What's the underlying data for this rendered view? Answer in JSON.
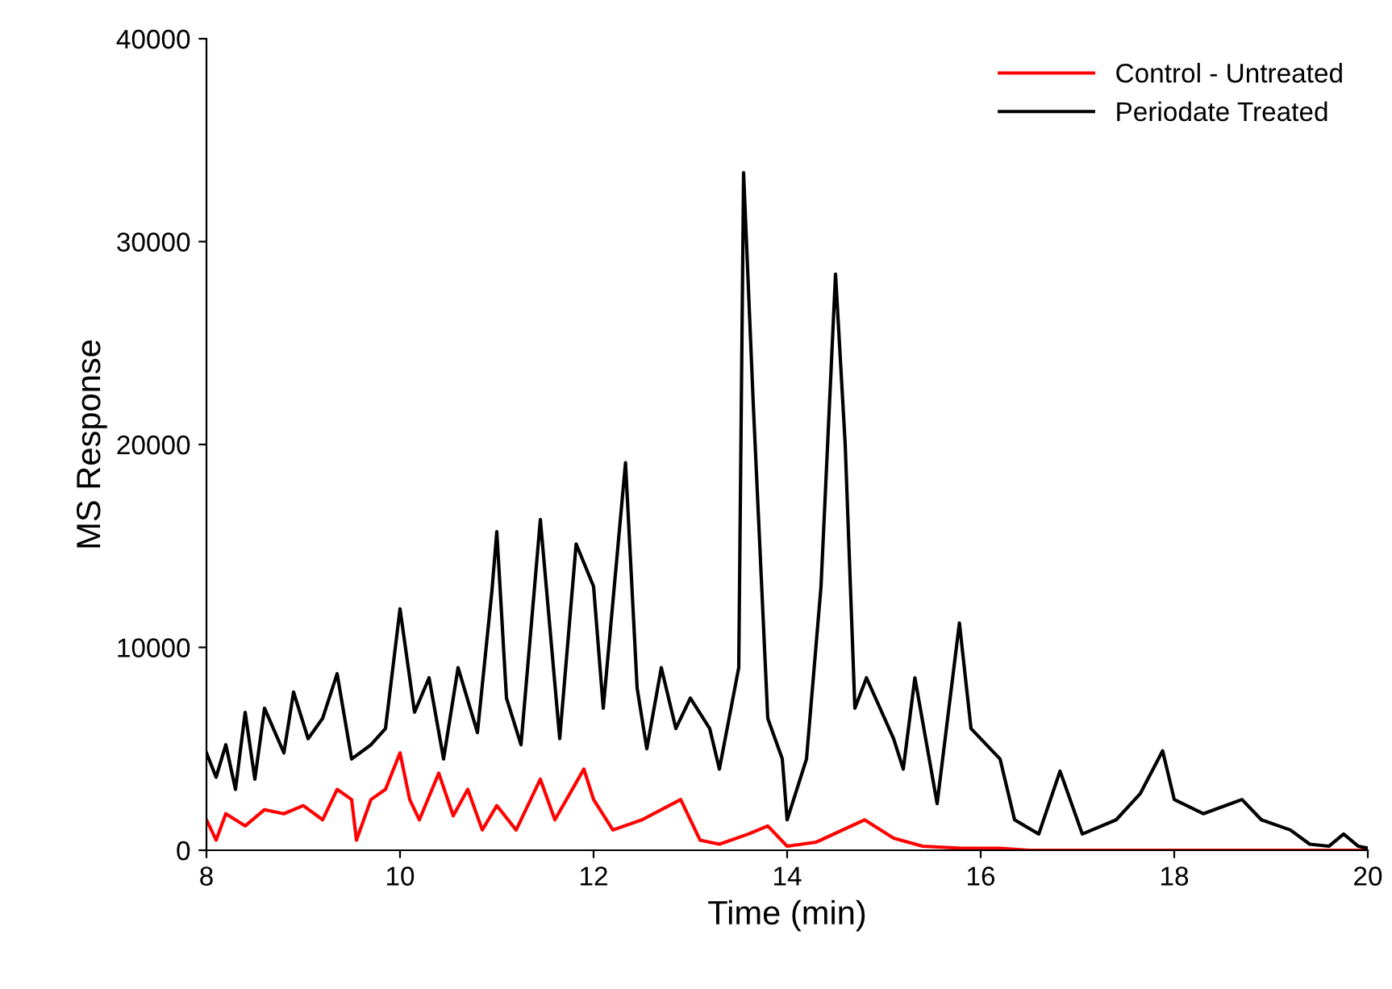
{
  "chart_data": {
    "type": "line",
    "xlabel": "Time (min)",
    "ylabel": "MS Response",
    "xlim": [
      8,
      20
    ],
    "ylim": [
      0,
      40000
    ],
    "xticks": [
      8,
      10,
      12,
      14,
      16,
      18,
      20
    ],
    "yticks": [
      0,
      10000,
      20000,
      30000,
      40000
    ],
    "grid": false,
    "legend": "top right",
    "marker": "none",
    "line_style": "solid",
    "series": [
      {
        "name": "Control - Untreated",
        "color": "#ff0000",
        "x": [
          8.0,
          8.1,
          8.2,
          8.4,
          8.6,
          8.8,
          9.0,
          9.2,
          9.35,
          9.5,
          9.55,
          9.7,
          9.85,
          10.0,
          10.1,
          10.2,
          10.4,
          10.55,
          10.7,
          10.85,
          11.0,
          11.2,
          11.45,
          11.6,
          11.9,
          12.0,
          12.2,
          12.5,
          12.9,
          13.1,
          13.3,
          13.6,
          13.8,
          14.0,
          14.3,
          14.8,
          15.1,
          15.4,
          15.8,
          16.2,
          16.5,
          18.0,
          20.0
        ],
        "values": [
          1500,
          500,
          1800,
          1200,
          2000,
          1800,
          2200,
          1500,
          3000,
          2500,
          500,
          2500,
          3000,
          4800,
          2500,
          1500,
          3800,
          1700,
          3000,
          1000,
          2200,
          1000,
          3500,
          1500,
          4000,
          2500,
          1000,
          1500,
          2500,
          500,
          300,
          800,
          1200,
          200,
          400,
          1500,
          600,
          200,
          100,
          100,
          0,
          0,
          0
        ]
      },
      {
        "name": "Periodate Treated",
        "color": "#000000",
        "x": [
          8.0,
          8.1,
          8.2,
          8.3,
          8.4,
          8.5,
          8.6,
          8.8,
          8.9,
          9.05,
          9.2,
          9.35,
          9.5,
          9.7,
          9.85,
          10.0,
          10.15,
          10.3,
          10.45,
          10.6,
          10.8,
          10.95,
          11.0,
          11.1,
          11.25,
          11.45,
          11.65,
          11.82,
          12.0,
          12.1,
          12.33,
          12.45,
          12.55,
          12.7,
          12.85,
          13.0,
          13.2,
          13.3,
          13.5,
          13.55,
          13.65,
          13.8,
          13.95,
          14.0,
          14.2,
          14.35,
          14.5,
          14.6,
          14.7,
          14.82,
          15.1,
          15.2,
          15.32,
          15.55,
          15.78,
          15.9,
          16.2,
          16.35,
          16.6,
          16.82,
          17.05,
          17.4,
          17.65,
          17.88,
          18.0,
          18.3,
          18.7,
          18.9,
          19.2,
          19.4,
          19.6,
          19.75,
          19.9,
          20.0
        ],
        "values": [
          4800,
          3600,
          5200,
          3000,
          6800,
          3500,
          7000,
          4800,
          7800,
          5500,
          6500,
          8700,
          4500,
          5200,
          6000,
          11900,
          6800,
          8500,
          4500,
          9000,
          5800,
          12800,
          15700,
          7500,
          5200,
          16300,
          5500,
          15100,
          13000,
          7000,
          19100,
          8000,
          5000,
          9000,
          6000,
          7500,
          6000,
          4000,
          9000,
          33400,
          22000,
          6500,
          4500,
          1500,
          4500,
          13000,
          28400,
          20000,
          7000,
          8500,
          5500,
          4000,
          8500,
          2300,
          11200,
          6000,
          4500,
          1500,
          800,
          3900,
          800,
          1500,
          2800,
          4900,
          2500,
          1800,
          2500,
          1500,
          1000,
          300,
          200,
          800,
          200,
          100
        ]
      }
    ]
  }
}
